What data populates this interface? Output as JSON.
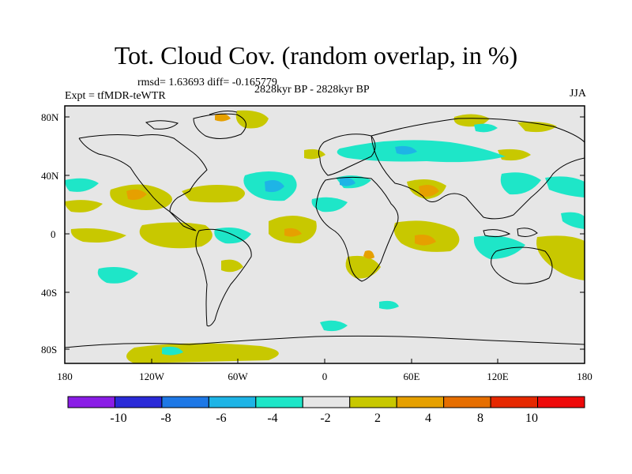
{
  "figure": {
    "title": "Tot. Cloud Cov. (random overlap, in %)",
    "stats": "rmsd= 1.63693 diff= -0.165779",
    "period": "2828kyr BP - 2828kyr BP",
    "experiment": "Expt = tfMDR-teWTR",
    "season": "JJA"
  },
  "axes": {
    "lat_labels": [
      "80N",
      "40N",
      "0",
      "40S",
      "80S"
    ],
    "lon_labels": [
      "180",
      "120W",
      "60W",
      "0",
      "60E",
      "120E",
      "180"
    ]
  },
  "colorbar": {
    "bins": [
      {
        "color": "#8a1de6"
      },
      {
        "color": "#2a2ad8"
      },
      {
        "color": "#1e78e6"
      },
      {
        "color": "#1eb4e6"
      },
      {
        "color": "#1ee6c8"
      },
      {
        "color": "#e6e6e6"
      },
      {
        "color": "#c8c800"
      },
      {
        "color": "#e6a000"
      },
      {
        "color": "#e66e00"
      },
      {
        "color": "#e62800"
      },
      {
        "color": "#ee0a0a"
      }
    ],
    "labels": [
      "-10",
      "-8",
      "-6",
      "-4",
      "-2",
      "2",
      "4",
      "8",
      "10"
    ]
  },
  "palette": {
    "background": "#e6e6e6",
    "cyan": "#1ee6c8",
    "lightblue": "#1eb4e6",
    "yellow": "#c8c800",
    "orange": "#e6a000"
  }
}
